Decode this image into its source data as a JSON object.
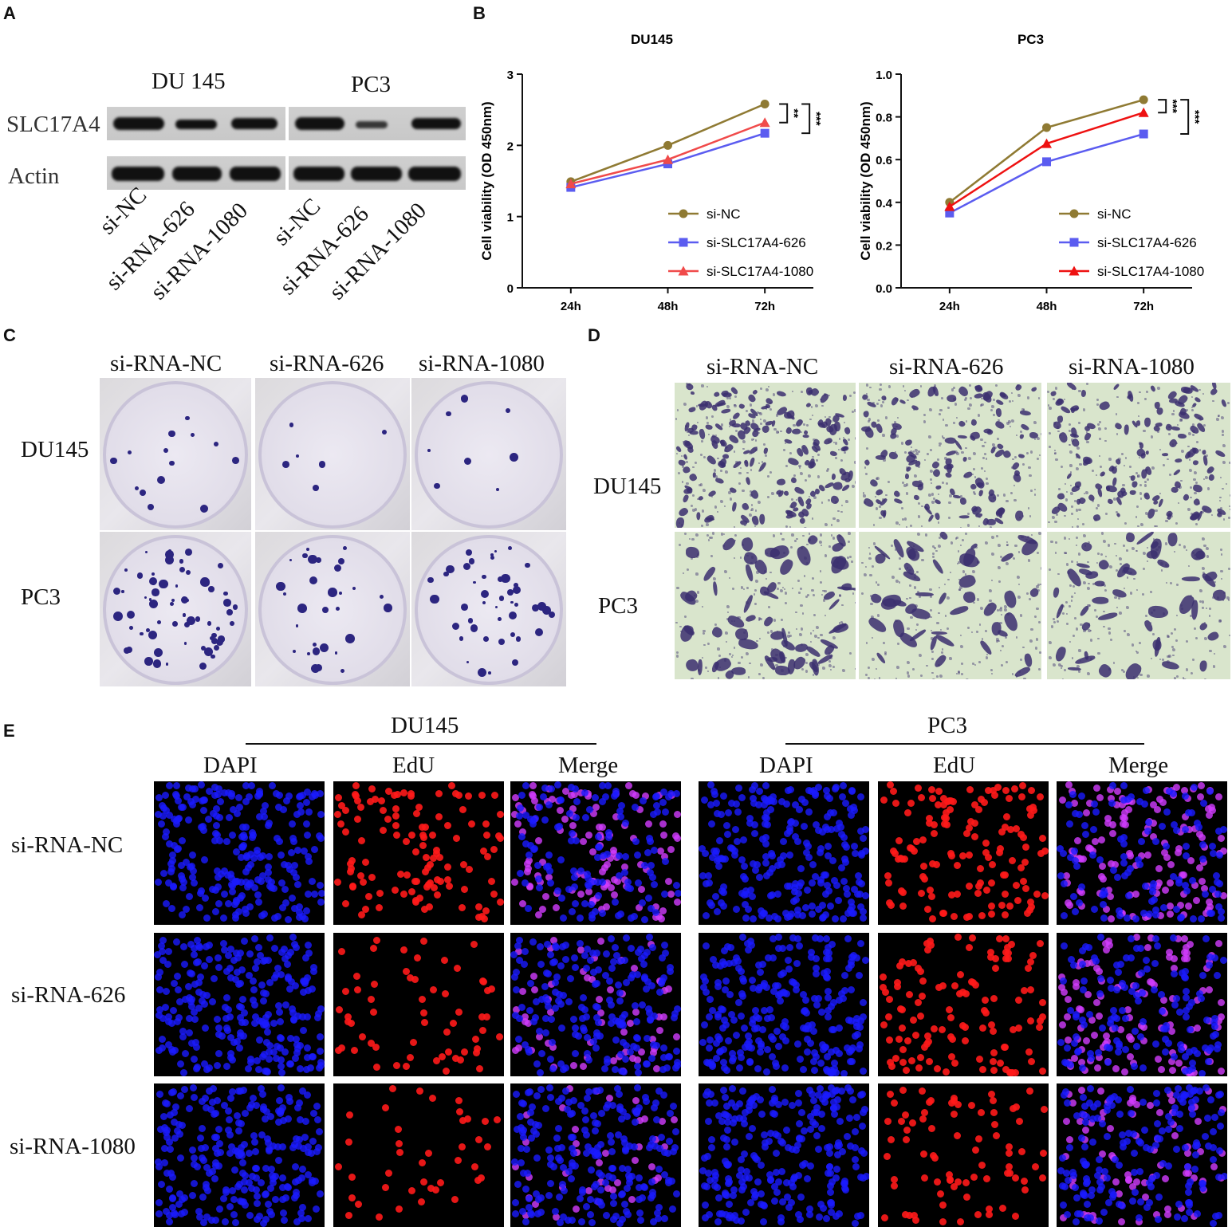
{
  "panels": {
    "a": "A",
    "b": "B",
    "c": "C",
    "d": "D",
    "e": "E"
  },
  "panel_a": {
    "cell_lines": [
      "DU 145",
      "PC3"
    ],
    "rows": [
      "SLC17A4",
      "Actin"
    ],
    "lanes": [
      "si-NC",
      "si-RNA-626",
      "si-RNA-1080",
      "si-NC",
      "si-RNA-626",
      "si-RNA-1080"
    ]
  },
  "chart_data": [
    {
      "type": "line",
      "title": "DU145",
      "xlabel": "",
      "ylabel": "Cell viability (OD 450nm)",
      "categories": [
        "24h",
        "48h",
        "72h"
      ],
      "ylim": [
        0,
        3
      ],
      "yticks": [
        "0",
        "1",
        "2",
        "3"
      ],
      "series": [
        {
          "name": "si-NC",
          "values": [
            1.49,
            2.0,
            2.58
          ],
          "color": "#8f7a33",
          "marker": "circle"
        },
        {
          "name": "si-SLC17A4-626",
          "values": [
            1.41,
            1.74,
            2.17
          ],
          "color": "#5b5cf0",
          "marker": "square"
        },
        {
          "name": "si-SLC17A4-1080",
          "values": [
            1.46,
            1.8,
            2.32
          ],
          "color": "#f04a4a",
          "marker": "triangle"
        }
      ],
      "significance": [
        "**",
        "***"
      ],
      "legend": "bottom-right"
    },
    {
      "type": "line",
      "title": "PC3",
      "xlabel": "",
      "ylabel": "Cell viability (OD 450nm)",
      "categories": [
        "24h",
        "48h",
        "72h"
      ],
      "ylim": [
        0,
        1.0
      ],
      "yticks": [
        "0.0",
        "0.2",
        "0.4",
        "0.6",
        "0.8",
        "1.0"
      ],
      "series": [
        {
          "name": "si-NC",
          "values": [
            0.4,
            0.75,
            0.88
          ],
          "color": "#8f7a33",
          "marker": "circle"
        },
        {
          "name": "si-SLC17A4-626",
          "values": [
            0.35,
            0.59,
            0.72
          ],
          "color": "#5b5cf0",
          "marker": "square"
        },
        {
          "name": "si-SLC17A4-1080",
          "values": [
            0.38,
            0.675,
            0.82
          ],
          "color": "#ee1111",
          "marker": "triangle"
        }
      ],
      "significance": [
        "***",
        "***"
      ],
      "legend": "bottom-right"
    }
  ],
  "panel_c": {
    "columns": [
      "si-RNA-NC",
      "si-RNA-626",
      "si-RNA-1080"
    ],
    "rows": [
      "DU145",
      "PC3"
    ]
  },
  "panel_d": {
    "columns": [
      "si-RNA-NC",
      "si-RNA-626",
      "si-RNA-1080"
    ],
    "rows": [
      "DU145",
      "PC3"
    ]
  },
  "panel_e": {
    "groups": [
      "DU145",
      "PC3"
    ],
    "channels": [
      "DAPI",
      "EdU",
      "Merge",
      "DAPI",
      "EdU",
      "Merge"
    ],
    "rows": [
      "si-RNA-NC",
      "si-RNA-626",
      "si-RNA-1080"
    ],
    "colors": {
      "dapi": "#1a1aff",
      "edu": "#ff1a1a",
      "merge": "#d23cff"
    }
  }
}
